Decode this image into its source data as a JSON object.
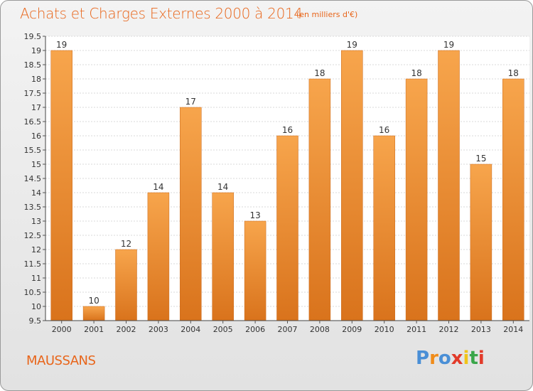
{
  "title": "Achats et Charges Externes 2000 à 2014",
  "subtitle": "(en milliers d'€)",
  "commune": "MAUSSANS",
  "logo": "Proxiti",
  "colors": {
    "bar_light": "#f7a54c",
    "bar_dark": "#d9731c",
    "accent": "#e8651a"
  },
  "chart_data": {
    "type": "bar",
    "title": "Achats et Charges Externes 2000 à 2014",
    "subtitle": "(en milliers d'€)",
    "xlabel": "",
    "ylabel": "",
    "categories": [
      "2000",
      "2001",
      "2002",
      "2003",
      "2004",
      "2005",
      "2006",
      "2007",
      "2008",
      "2009",
      "2010",
      "2011",
      "2012",
      "2013",
      "2014"
    ],
    "values": [
      19,
      10,
      12,
      14,
      17,
      14,
      13,
      16,
      18,
      19,
      16,
      18,
      19,
      15,
      18
    ],
    "ylim": [
      9.5,
      19.5
    ],
    "yticks": [
      "9.5",
      "10",
      "10.5",
      "11",
      "11.5",
      "12",
      "12.5",
      "13",
      "13.5",
      "14",
      "14.5",
      "15",
      "15.5",
      "16",
      "16.5",
      "17",
      "17.5",
      "18",
      "18.5",
      "19",
      "19.5"
    ],
    "grid": true,
    "legend": "none"
  }
}
